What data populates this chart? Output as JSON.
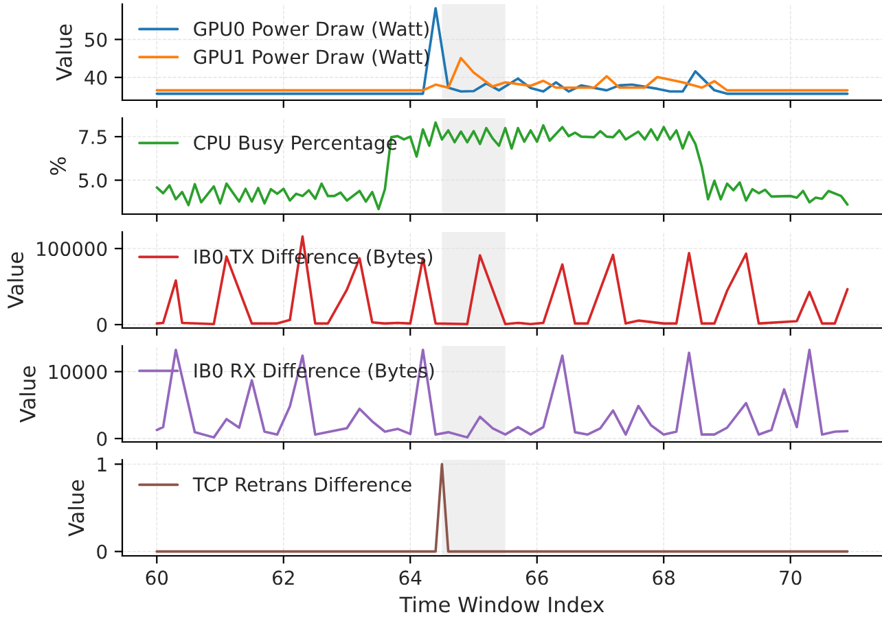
{
  "chart_data": [
    {
      "type": "line",
      "xlim": [
        59.455,
        71.445
      ],
      "xticks": [
        60,
        62,
        64,
        66,
        68,
        70
      ],
      "ylim": [
        34.0,
        59.3
      ],
      "yticks": [
        40,
        50
      ],
      "ylabel": "Value",
      "tick_labels": "y",
      "grid": true,
      "legend": "top left",
      "bands": [
        {
          "axis": "x",
          "from": 64.5,
          "to": 65.5,
          "color": "#efefef"
        }
      ],
      "series": [
        {
          "name": "GPU0 Power Draw (Watt)",
          "color": "#1f77b4",
          "x": [
            60.0,
            64.2,
            64.4,
            64.6,
            64.8,
            65.0,
            65.2,
            65.4,
            65.7,
            65.9,
            66.1,
            66.3,
            66.5,
            66.7,
            67.1,
            67.3,
            67.5,
            67.9,
            68.1,
            68.3,
            68.5,
            68.8,
            69.0,
            70.9
          ],
          "values": [
            35.7,
            35.7,
            58.2,
            37.3,
            36.3,
            36.4,
            38.4,
            36.6,
            39.7,
            37.2,
            36.3,
            38.7,
            36.3,
            37.9,
            36.6,
            37.9,
            38.1,
            37.0,
            36.3,
            36.3,
            41.6,
            36.6,
            35.7,
            35.7
          ]
        },
        {
          "name": "GPU1 Power Draw (Watt)",
          "color": "#ff7f0e",
          "x": [
            60.0,
            64.2,
            64.4,
            64.6,
            64.8,
            65.0,
            65.2,
            65.3,
            65.5,
            65.9,
            66.1,
            66.3,
            66.9,
            67.1,
            67.3,
            67.7,
            67.9,
            68.3,
            68.6,
            68.8,
            69.0,
            70.9
          ],
          "values": [
            36.6,
            36.6,
            38.1,
            37.3,
            45.1,
            41.3,
            38.8,
            37.6,
            38.7,
            37.8,
            39.1,
            37.3,
            37.3,
            40.3,
            37.3,
            37.3,
            40.1,
            38.7,
            37.3,
            39.0,
            36.6,
            36.6
          ]
        }
      ]
    },
    {
      "type": "line",
      "xlim": [
        59.455,
        71.445
      ],
      "xticks": [
        60,
        62,
        64,
        66,
        68,
        70
      ],
      "ylim": [
        3.05,
        8.57
      ],
      "yticks": [
        {
          "value": 5,
          "label": "5.0"
        },
        7.5
      ],
      "ylabel": "%",
      "tick_labels": "y",
      "grid": true,
      "legend": "top left",
      "bands": [
        {
          "axis": "x",
          "from": 64.5,
          "to": 65.5,
          "color": "#efefef"
        }
      ],
      "series": [
        {
          "name": "CPU Busy Percentage",
          "color": "#2ca02c",
          "x": [
            60.0,
            60.1,
            60.2,
            60.3,
            60.4,
            60.5,
            60.6,
            60.7,
            60.9,
            61.0,
            61.1,
            61.3,
            61.4,
            61.5,
            61.6,
            61.7,
            61.8,
            61.9,
            62.0,
            62.1,
            62.2,
            62.3,
            62.4,
            62.5,
            62.6,
            62.7,
            62.8,
            62.9,
            63.0,
            63.2,
            63.3,
            63.4,
            63.5,
            63.6,
            63.7,
            63.8,
            63.9,
            64.0,
            64.1,
            64.2,
            64.3,
            64.4,
            64.5,
            64.6,
            64.7,
            64.8,
            64.9,
            65.0,
            65.1,
            65.2,
            65.3,
            65.4,
            65.5,
            65.6,
            65.7,
            65.8,
            65.9,
            66.0,
            66.1,
            66.2,
            66.4,
            66.5,
            66.6,
            66.7,
            66.9,
            67.0,
            67.1,
            67.2,
            67.3,
            67.4,
            67.6,
            67.7,
            67.8,
            67.9,
            68.0,
            68.1,
            68.2,
            68.3,
            68.4,
            68.5,
            68.6,
            68.7,
            68.8,
            68.9,
            69.0,
            69.1,
            69.2,
            69.3,
            69.4,
            69.5,
            69.6,
            69.7,
            70.0,
            70.1,
            70.2,
            70.3,
            70.4,
            70.5,
            70.6,
            70.8,
            70.9
          ],
          "values": [
            4.58,
            4.25,
            4.7,
            3.9,
            4.32,
            3.57,
            4.77,
            3.73,
            4.64,
            3.67,
            4.8,
            3.77,
            4.5,
            3.77,
            4.55,
            3.67,
            4.48,
            4.22,
            4.5,
            3.83,
            4.22,
            4.09,
            4.42,
            3.93,
            4.8,
            4.09,
            4.09,
            4.29,
            3.83,
            4.38,
            3.77,
            4.32,
            3.34,
            4.48,
            7.47,
            7.53,
            7.34,
            7.5,
            6.36,
            7.92,
            6.98,
            8.31,
            7.34,
            7.86,
            7.18,
            7.79,
            7.18,
            7.82,
            7.08,
            7.99,
            7.4,
            6.98,
            7.99,
            6.82,
            7.99,
            7.21,
            7.86,
            7.21,
            8.15,
            7.27,
            8.05,
            7.53,
            7.73,
            7.5,
            7.47,
            7.82,
            7.5,
            7.47,
            7.86,
            7.34,
            7.79,
            7.34,
            7.92,
            7.31,
            8.05,
            7.34,
            7.86,
            6.82,
            7.76,
            7.08,
            5.78,
            3.9,
            4.97,
            3.9,
            4.8,
            4.42,
            4.87,
            3.83,
            4.48,
            4.25,
            4.45,
            4.06,
            4.09,
            4.0,
            4.38,
            3.73,
            4.0,
            3.93,
            4.38,
            4.09,
            3.6
          ]
        }
      ]
    },
    {
      "type": "line",
      "xlim": [
        59.455,
        71.445
      ],
      "xticks": [
        60,
        62,
        64,
        66,
        68,
        70
      ],
      "ylim": [
        -4500,
        121800
      ],
      "yticks": [
        0,
        100000
      ],
      "ylabel": "Value",
      "tick_labels": "y",
      "grid": true,
      "legend": "top left",
      "bands": [
        {
          "axis": "x",
          "from": 64.5,
          "to": 65.5,
          "color": "#efefef"
        }
      ],
      "series": [
        {
          "name": "IB0 TX Difference (Bytes)",
          "color": "#d62728",
          "x": [
            60.0,
            60.1,
            60.3,
            60.4,
            60.9,
            61.1,
            61.5,
            61.9,
            62.1,
            62.3,
            62.5,
            62.7,
            63.0,
            63.2,
            63.4,
            63.6,
            63.8,
            64.0,
            64.2,
            64.4,
            64.9,
            65.1,
            65.5,
            65.7,
            65.9,
            66.1,
            66.4,
            66.6,
            66.8,
            67.2,
            67.4,
            67.6,
            68.0,
            68.2,
            68.4,
            68.6,
            68.8,
            69.0,
            69.3,
            69.5,
            70.1,
            70.3,
            70.5,
            70.7,
            70.9
          ],
          "values": [
            1500,
            2300,
            57900,
            2300,
            750,
            89500,
            1500,
            1500,
            6000,
            115800,
            1500,
            1500,
            45900,
            87200,
            3000,
            1500,
            2300,
            1500,
            87200,
            1500,
            750,
            91000,
            750,
            2300,
            750,
            2300,
            79000,
            1500,
            1500,
            91700,
            1500,
            5300,
            1500,
            1500,
            94000,
            1500,
            1500,
            44400,
            93200,
            1500,
            4500,
            42900,
            1500,
            1500,
            46600
          ]
        }
      ]
    },
    {
      "type": "line",
      "xlim": [
        59.455,
        71.445
      ],
      "xticks": [
        60,
        62,
        64,
        66,
        68,
        70
      ],
      "ylim": [
        -510,
        13850
      ],
      "yticks": [
        0,
        10000
      ],
      "ylabel": "Value",
      "tick_labels": "y",
      "grid": true,
      "legend": "top left",
      "bands": [
        {
          "axis": "x",
          "from": 64.5,
          "to": 65.5,
          "color": "#efefef"
        }
      ],
      "series": [
        {
          "name": "IB0 RX Difference (Bytes)",
          "color": "#9467bd",
          "x": [
            60.0,
            60.1,
            60.3,
            60.6,
            60.9,
            61.1,
            61.3,
            61.5,
            61.7,
            61.9,
            62.1,
            62.3,
            62.5,
            63.0,
            63.2,
            63.4,
            63.6,
            63.8,
            64.0,
            64.2,
            64.4,
            64.6,
            64.9,
            65.1,
            65.3,
            65.5,
            65.7,
            65.9,
            66.1,
            66.4,
            66.6,
            66.8,
            67.0,
            67.2,
            67.4,
            67.6,
            67.8,
            68.0,
            68.2,
            68.4,
            68.6,
            68.8,
            69.0,
            69.3,
            69.5,
            69.7,
            69.9,
            70.1,
            70.3,
            70.5,
            70.7,
            70.9
          ],
          "values": [
            1280,
            1710,
            13250,
            940,
            170,
            2900,
            1620,
            8700,
            1030,
            600,
            4790,
            12390,
            600,
            1540,
            4440,
            2560,
            1030,
            1450,
            680,
            13250,
            600,
            940,
            170,
            3250,
            1540,
            600,
            1710,
            600,
            1710,
            12390,
            940,
            600,
            1540,
            4190,
            600,
            4870,
            1970,
            600,
            1030,
            12820,
            600,
            600,
            1620,
            5300,
            600,
            1280,
            7350,
            1710,
            13250,
            600,
            1030,
            1110
          ]
        }
      ]
    },
    {
      "type": "line",
      "xlim": [
        59.455,
        71.445
      ],
      "xticks": [
        60,
        62,
        64,
        66,
        68,
        70
      ],
      "ylim": [
        -0.05,
        1.05
      ],
      "yticks": [
        0,
        1
      ],
      "ylabel": "Value",
      "xlabel": "Time Window Index",
      "grid": true,
      "legend": "top left",
      "bands": [
        {
          "axis": "x",
          "from": 64.5,
          "to": 65.5,
          "color": "#efefef"
        }
      ],
      "series": [
        {
          "name": "TCP Retrans Difference",
          "color": "#8c564b",
          "x": [
            60.0,
            64.4,
            64.5,
            64.6,
            70.9
          ],
          "values": [
            0,
            0,
            1,
            0,
            0
          ]
        }
      ]
    }
  ]
}
